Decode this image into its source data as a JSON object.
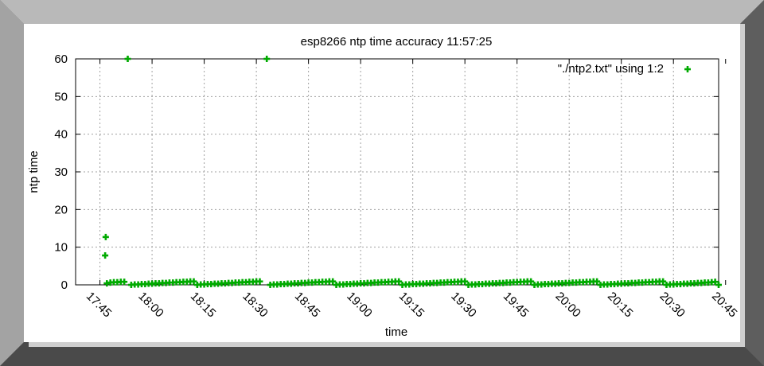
{
  "chart_data": {
    "type": "scatter",
    "title": "esp8266 ntp time accuracy 11:57:25",
    "xlabel": "time",
    "ylabel": "ntp time",
    "ylim": [
      0,
      60
    ],
    "y_ticks": [
      "0",
      "10",
      "20",
      "30",
      "40",
      "50",
      "60"
    ],
    "xlim": [
      "17:38",
      "20:43"
    ],
    "x_ticks": [
      "17:45",
      "18:00",
      "18:15",
      "18:30",
      "18:45",
      "19:00",
      "19:15",
      "19:30",
      "19:45",
      "20:00",
      "20:15",
      "20:30",
      "20:45"
    ],
    "grid": true,
    "legend": {
      "label": "\"./ntp2.txt\" using 1:2",
      "position": "top-right"
    },
    "series": [
      {
        "name": "\"./ntp2.txt\" using 1:2",
        "color": "#00aa00",
        "marker": "plus",
        "points": [
          [
            "17:46:30",
            7.8
          ],
          [
            "17:46:40",
            12.7
          ],
          [
            "17:47:00",
            0.4
          ],
          [
            "17:48:00",
            0.6
          ],
          [
            "17:49:00",
            0.7
          ],
          [
            "17:50:00",
            0.7
          ],
          [
            "17:51:00",
            0.8
          ],
          [
            "17:52:00",
            0.8
          ],
          [
            "17:53:00",
            60
          ],
          [
            "17:54:00",
            0.0
          ],
          [
            "17:55:00",
            0.1
          ],
          [
            "17:56:00",
            0.1
          ],
          [
            "17:57:00",
            0.2
          ],
          [
            "17:58:00",
            0.2
          ],
          [
            "17:59:00",
            0.3
          ],
          [
            "18:00:00",
            0.3
          ],
          [
            "18:01:00",
            0.4
          ],
          [
            "18:02:00",
            0.4
          ],
          [
            "18:03:00",
            0.5
          ],
          [
            "18:04:00",
            0.5
          ],
          [
            "18:05:00",
            0.6
          ],
          [
            "18:06:00",
            0.6
          ],
          [
            "18:07:00",
            0.7
          ],
          [
            "18:08:00",
            0.7
          ],
          [
            "18:09:00",
            0.8
          ],
          [
            "18:10:00",
            0.8
          ],
          [
            "18:11:00",
            0.9
          ],
          [
            "18:12:00",
            0.9
          ],
          [
            "18:13:00",
            0.0
          ],
          [
            "18:14:00",
            0.1
          ],
          [
            "18:15:00",
            0.1
          ],
          [
            "18:16:00",
            0.2
          ],
          [
            "18:17:00",
            0.2
          ],
          [
            "18:18:00",
            0.3
          ],
          [
            "18:19:00",
            0.3
          ],
          [
            "18:20:00",
            0.4
          ],
          [
            "18:21:00",
            0.4
          ],
          [
            "18:22:00",
            0.5
          ],
          [
            "18:23:00",
            0.5
          ],
          [
            "18:24:00",
            0.6
          ],
          [
            "18:25:00",
            0.6
          ],
          [
            "18:26:00",
            0.7
          ],
          [
            "18:27:00",
            0.7
          ],
          [
            "18:28:00",
            0.8
          ],
          [
            "18:29:00",
            0.8
          ],
          [
            "18:30:00",
            0.9
          ],
          [
            "18:31:00",
            0.9
          ],
          [
            "18:33:00",
            60
          ],
          [
            "18:34:00",
            0.0
          ],
          [
            "18:35:00",
            0.1
          ],
          [
            "18:36:00",
            0.1
          ],
          [
            "18:37:00",
            0.2
          ],
          [
            "18:38:00",
            0.2
          ],
          [
            "18:39:00",
            0.3
          ],
          [
            "18:40:00",
            0.3
          ],
          [
            "18:41:00",
            0.4
          ],
          [
            "18:42:00",
            0.4
          ],
          [
            "18:43:00",
            0.5
          ],
          [
            "18:44:00",
            0.5
          ],
          [
            "18:45:00",
            0.6
          ],
          [
            "18:46:00",
            0.6
          ],
          [
            "18:47:00",
            0.7
          ],
          [
            "18:48:00",
            0.7
          ],
          [
            "18:49:00",
            0.8
          ],
          [
            "18:50:00",
            0.8
          ],
          [
            "18:51:00",
            0.9
          ],
          [
            "18:52:00",
            0.9
          ],
          [
            "18:53:00",
            0.0
          ],
          [
            "18:54:00",
            0.1
          ],
          [
            "18:55:00",
            0.1
          ],
          [
            "18:56:00",
            0.2
          ],
          [
            "18:57:00",
            0.2
          ],
          [
            "18:58:00",
            0.3
          ],
          [
            "18:59:00",
            0.3
          ],
          [
            "19:00:00",
            0.4
          ],
          [
            "19:01:00",
            0.4
          ],
          [
            "19:02:00",
            0.5
          ],
          [
            "19:03:00",
            0.5
          ],
          [
            "19:04:00",
            0.6
          ],
          [
            "19:05:00",
            0.6
          ],
          [
            "19:06:00",
            0.7
          ],
          [
            "19:07:00",
            0.7
          ],
          [
            "19:08:00",
            0.8
          ],
          [
            "19:09:00",
            0.8
          ],
          [
            "19:10:00",
            0.9
          ],
          [
            "19:11:00",
            0.9
          ],
          [
            "19:12:00",
            0.0
          ],
          [
            "19:13:00",
            0.1
          ],
          [
            "19:14:00",
            0.1
          ],
          [
            "19:15:00",
            0.2
          ],
          [
            "19:16:00",
            0.2
          ],
          [
            "19:17:00",
            0.3
          ],
          [
            "19:18:00",
            0.3
          ],
          [
            "19:19:00",
            0.4
          ],
          [
            "19:20:00",
            0.4
          ],
          [
            "19:21:00",
            0.5
          ],
          [
            "19:22:00",
            0.5
          ],
          [
            "19:23:00",
            0.6
          ],
          [
            "19:24:00",
            0.6
          ],
          [
            "19:25:00",
            0.7
          ],
          [
            "19:26:00",
            0.7
          ],
          [
            "19:27:00",
            0.8
          ],
          [
            "19:28:00",
            0.8
          ],
          [
            "19:29:00",
            0.9
          ],
          [
            "19:30:00",
            0.9
          ],
          [
            "19:31:00",
            0.0
          ],
          [
            "19:32:00",
            0.1
          ],
          [
            "19:33:00",
            0.1
          ],
          [
            "19:34:00",
            0.2
          ],
          [
            "19:35:00",
            0.2
          ],
          [
            "19:36:00",
            0.3
          ],
          [
            "19:37:00",
            0.3
          ],
          [
            "19:38:00",
            0.4
          ],
          [
            "19:39:00",
            0.4
          ],
          [
            "19:40:00",
            0.5
          ],
          [
            "19:41:00",
            0.5
          ],
          [
            "19:42:00",
            0.6
          ],
          [
            "19:43:00",
            0.6
          ],
          [
            "19:44:00",
            0.7
          ],
          [
            "19:45:00",
            0.7
          ],
          [
            "19:46:00",
            0.8
          ],
          [
            "19:47:00",
            0.8
          ],
          [
            "19:48:00",
            0.9
          ],
          [
            "19:49:00",
            0.9
          ],
          [
            "19:50:00",
            0.0
          ],
          [
            "19:51:00",
            0.1
          ],
          [
            "19:52:00",
            0.1
          ],
          [
            "19:53:00",
            0.2
          ],
          [
            "19:54:00",
            0.2
          ],
          [
            "19:55:00",
            0.3
          ],
          [
            "19:56:00",
            0.3
          ],
          [
            "19:57:00",
            0.4
          ],
          [
            "19:58:00",
            0.4
          ],
          [
            "19:59:00",
            0.5
          ],
          [
            "20:00:00",
            0.5
          ],
          [
            "20:01:00",
            0.6
          ],
          [
            "20:02:00",
            0.6
          ],
          [
            "20:03:00",
            0.7
          ],
          [
            "20:04:00",
            0.7
          ],
          [
            "20:05:00",
            0.8
          ],
          [
            "20:06:00",
            0.8
          ],
          [
            "20:07:00",
            0.9
          ],
          [
            "20:08:00",
            0.9
          ],
          [
            "20:09:00",
            0.0
          ],
          [
            "20:10:00",
            0.1
          ],
          [
            "20:11:00",
            0.1
          ],
          [
            "20:12:00",
            0.2
          ],
          [
            "20:13:00",
            0.2
          ],
          [
            "20:14:00",
            0.3
          ],
          [
            "20:15:00",
            0.3
          ],
          [
            "20:16:00",
            0.4
          ],
          [
            "20:17:00",
            0.4
          ],
          [
            "20:18:00",
            0.5
          ],
          [
            "20:19:00",
            0.5
          ],
          [
            "20:20:00",
            0.6
          ],
          [
            "20:21:00",
            0.6
          ],
          [
            "20:22:00",
            0.7
          ],
          [
            "20:23:00",
            0.7
          ],
          [
            "20:24:00",
            0.8
          ],
          [
            "20:25:00",
            0.8
          ],
          [
            "20:26:00",
            0.9
          ],
          [
            "20:27:00",
            0.9
          ],
          [
            "20:28:00",
            0.0
          ],
          [
            "20:29:00",
            0.1
          ],
          [
            "20:30:00",
            0.1
          ],
          [
            "20:31:00",
            0.2
          ],
          [
            "20:32:00",
            0.2
          ],
          [
            "20:33:00",
            0.3
          ],
          [
            "20:34:00",
            0.3
          ],
          [
            "20:35:00",
            0.4
          ],
          [
            "20:36:00",
            0.4
          ],
          [
            "20:37:00",
            0.5
          ],
          [
            "20:38:00",
            0.5
          ],
          [
            "20:39:00",
            0.6
          ],
          [
            "20:40:00",
            0.6
          ],
          [
            "20:41:00",
            0.7
          ],
          [
            "20:42:00",
            0.8
          ],
          [
            "20:43:00",
            0.0
          ]
        ]
      }
    ]
  }
}
